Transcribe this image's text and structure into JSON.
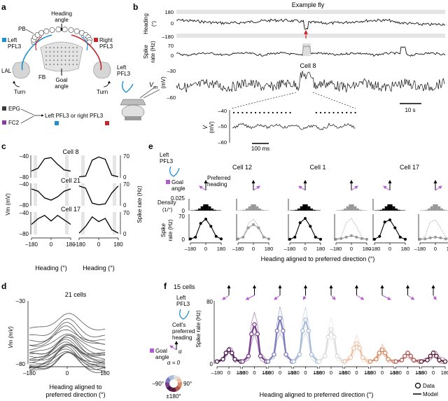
{
  "panels": {
    "a": "a",
    "b": "b",
    "c": "c",
    "d": "d",
    "e": "e",
    "f": "f"
  },
  "panel_a": {
    "heading_angle": "Heading",
    "heading_angle2": "angle",
    "pb": "PB",
    "left_pfl3": "Left",
    "left_pfl3_2": "PFL3",
    "right_pfl3": "Right",
    "right_pfl3_2": "PFL3",
    "lal": "LAL",
    "fb": "FB",
    "goal_angle": "Goal",
    "goal_angle2": "angle",
    "turn_left": "Turn",
    "turn_right": "Turn",
    "epg": "EPG",
    "fc2": "FC2",
    "or_text": "Left PFL3 or right PFL3",
    "colors": {
      "epg": "#3a3a3a",
      "fc2": "#8a3aa8",
      "left": "#1f8fd0",
      "right": "#c0262b"
    }
  },
  "panel_b": {
    "title": "Example fly",
    "heading_label": "Heading",
    "heading_unit": "(°)",
    "heading_ticks": [
      "180",
      "0",
      "–180"
    ],
    "spike_label": "Spike",
    "spike_label2": "rate (Hz)",
    "spike_ticks": [
      "70",
      "0"
    ],
    "vm_label": "V",
    "vm_sub": "m",
    "vm_unit": "(mV)",
    "vm_ticks": [
      "–30",
      "–60"
    ],
    "cell": "Cell 8",
    "fly_label": "Left",
    "fly_label2": "PFL3",
    "scalebar": "10 s",
    "inset_ticks": [
      "–40",
      "–50",
      "–60"
    ],
    "inset_scale": "100 ms"
  },
  "panel_c": {
    "cells": [
      "Cell 8",
      "Cell 21",
      "Cell 17"
    ],
    "vm_ticks": [
      "–40",
      "–80"
    ],
    "rate_ticks": [
      "70",
      "0"
    ],
    "ylabel_left": "Vm (mV)",
    "ylabel_right": "Spike rate (Hz)",
    "xticks": [
      "–180",
      "0",
      "180"
    ],
    "xlabel_left": "Heading (°)",
    "xlabel_right": "Heading (°)"
  },
  "panel_d": {
    "title": "21 cells",
    "ylabel": "Vm (mV)",
    "yticks": [
      "–30",
      "–80"
    ],
    "xticks": [
      "–180",
      "0",
      "180"
    ],
    "xlabel": "Heading aligned to",
    "xlabel2": "preferred direction (°)"
  },
  "panel_e": {
    "fly_label": "Left",
    "fly_label2": "PFL3",
    "goal_angle": "Goal",
    "goal_angle2": "angle",
    "preferred": "Preferred",
    "preferred2": "heading",
    "cells": [
      "Cell 12",
      "Cell 1",
      "Cell 17"
    ],
    "density_label": "Density",
    "density_unit": "(1/°)",
    "density_tick": "0.025",
    "density_zero": "0",
    "spike_label": "Spike",
    "spike_label2": "rate (Hz)",
    "spike_ticks": [
      "70",
      "0"
    ],
    "xticks": [
      "–180",
      "0",
      "180"
    ],
    "xlabel": "Heading aligned to preferred direction (°)"
  },
  "panel_f": {
    "title": "15 cells",
    "fly_label": "Left",
    "fly_label2": "PFL3",
    "cells_pref": "Cell's",
    "cells_pref2": "preferred",
    "cells_pref3": "heading",
    "goal": "Goal",
    "goal2": "angle",
    "alpha": "α",
    "alpha0": "α = 0",
    "wheel_left": "–90°",
    "wheel_right": "90°",
    "wheel_bottom": "±180°",
    "ylabel": "Spike rate (Hz)",
    "yticks": [
      "80",
      "0"
    ],
    "xticks": [
      "–180",
      "0",
      "180"
    ],
    "xlabel": "Heading aligned to preferred direction (°)",
    "legend_data": "Data",
    "legend_model": "Model",
    "colors": [
      "#4a1850",
      "#7a3f8f",
      "#7d7bc0",
      "#a8bcd8",
      "#dedede",
      "#ecc3a8",
      "#d88a63",
      "#b05a55",
      "#5e1a3a"
    ]
  },
  "chart_data": [
    {
      "type": "line",
      "panel": "c",
      "series": [
        {
          "name": "Cell 8",
          "vm_x": [
            -180,
            -120,
            -60,
            0,
            60,
            120,
            180
          ],
          "vm": [
            -68,
            -63,
            -46,
            -44,
            -56,
            -66,
            -68
          ],
          "rate_x": [
            -180,
            -120,
            -60,
            0,
            60,
            120,
            180
          ],
          "rate": [
            3,
            5,
            55,
            65,
            58,
            8,
            3
          ]
        },
        {
          "name": "Cell 21",
          "vm_x": [
            -180,
            -120,
            -60,
            0,
            60,
            120,
            180
          ],
          "vm": [
            -50,
            -54,
            -66,
            -70,
            -64,
            -54,
            -50
          ],
          "rate_x": [
            -180,
            -120,
            -60,
            0,
            60,
            120,
            180
          ],
          "rate": [
            62,
            55,
            8,
            3,
            6,
            40,
            62
          ]
        },
        {
          "name": "Cell 17",
          "vm_x": [
            -180,
            -120,
            -60,
            0,
            60,
            120,
            180
          ],
          "vm": [
            -62,
            -52,
            -46,
            -56,
            -46,
            -54,
            -62
          ],
          "rate_x": [
            -180,
            -120,
            -60,
            0,
            60,
            120,
            180
          ],
          "rate": [
            4,
            25,
            55,
            40,
            50,
            15,
            4
          ]
        }
      ]
    },
    {
      "type": "line",
      "panel": "d",
      "xlim": [
        -180,
        180
      ],
      "ylim": [
        -80,
        -30
      ],
      "series_peaks": [
        -40,
        -45,
        -48,
        -50,
        -52,
        -55,
        -57,
        -58,
        -60,
        -61,
        -62,
        -63,
        -64,
        -65,
        -66,
        -67,
        -68,
        -69,
        -70,
        -71,
        -72
      ]
    },
    {
      "type": "line",
      "panel": "e",
      "xlim": [
        -180,
        180
      ],
      "ylim": [
        0,
        70
      ],
      "series": [
        {
          "name": "Cell 12 aligned",
          "values": [
            5,
            10,
            48,
            60,
            40,
            12,
            5
          ]
        },
        {
          "name": "Cell 12 misaligned",
          "values": [
            5,
            10,
            36,
            45,
            36,
            10,
            5
          ]
        },
        {
          "name": "Cell 1 aligned",
          "values": [
            4,
            10,
            50,
            62,
            40,
            10,
            4
          ]
        },
        {
          "name": "Cell 1 misaligned",
          "values": [
            4,
            6,
            10,
            14,
            10,
            6,
            4
          ]
        },
        {
          "name": "Cell 17 aligned",
          "values": [
            4,
            12,
            52,
            58,
            36,
            10,
            4
          ]
        },
        {
          "name": "Cell 17 misaligned",
          "values": [
            4,
            5,
            8,
            10,
            8,
            5,
            4
          ]
        }
      ],
      "x": [
        -180,
        -120,
        -60,
        0,
        60,
        120,
        180
      ]
    },
    {
      "type": "line",
      "panel": "f",
      "xlim": [
        -180,
        180
      ],
      "ylim": [
        0,
        80
      ],
      "x": [
        -180,
        -90,
        -45,
        0,
        45,
        90,
        180
      ],
      "series": [
        {
          "values": [
            3,
            6,
            14,
            18,
            14,
            6,
            3
          ]
        },
        {
          "values": [
            3,
            10,
            38,
            50,
            38,
            10,
            3
          ]
        },
        {
          "values": [
            3,
            12,
            42,
            58,
            42,
            12,
            3
          ]
        },
        {
          "values": [
            3,
            12,
            42,
            56,
            42,
            12,
            3
          ]
        },
        {
          "values": [
            3,
            10,
            34,
            44,
            34,
            10,
            3
          ]
        },
        {
          "values": [
            3,
            8,
            20,
            26,
            20,
            8,
            3
          ]
        },
        {
          "values": [
            3,
            6,
            14,
            18,
            14,
            6,
            3
          ]
        },
        {
          "values": [
            3,
            5,
            10,
            14,
            10,
            5,
            3
          ]
        },
        {
          "values": [
            3,
            5,
            10,
            14,
            10,
            5,
            3
          ]
        }
      ]
    }
  ]
}
